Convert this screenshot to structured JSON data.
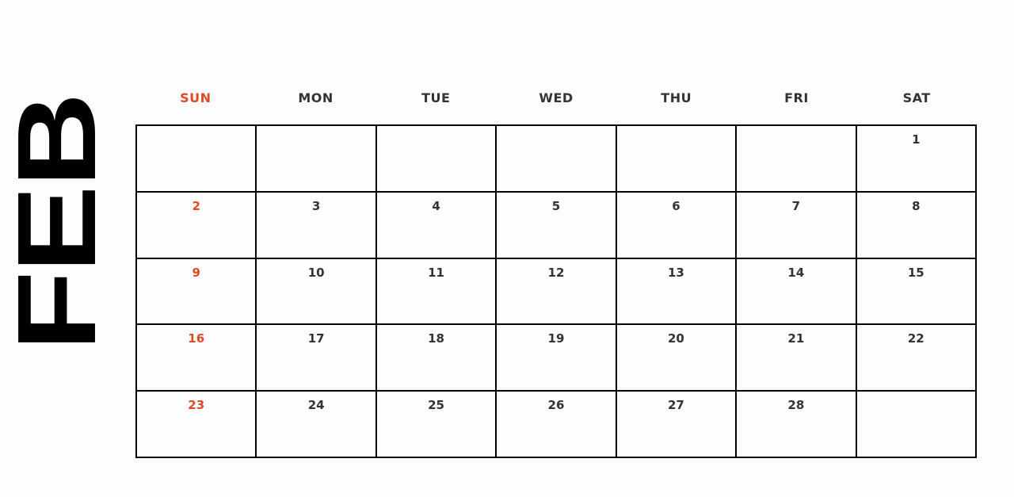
{
  "month": "FEB",
  "accent_color": "#dc4a26",
  "weekdays": [
    "SUN",
    "MON",
    "TUE",
    "WED",
    "THU",
    "FRI",
    "SAT"
  ],
  "weeks": [
    [
      "",
      "",
      "",
      "",
      "",
      "",
      "1"
    ],
    [
      "2",
      "3",
      "4",
      "5",
      "6",
      "7",
      "8"
    ],
    [
      "9",
      "10",
      "11",
      "12",
      "13",
      "14",
      "15"
    ],
    [
      "16",
      "17",
      "18",
      "19",
      "20",
      "21",
      "22"
    ],
    [
      "23",
      "24",
      "25",
      "26",
      "27",
      "28",
      ""
    ]
  ]
}
